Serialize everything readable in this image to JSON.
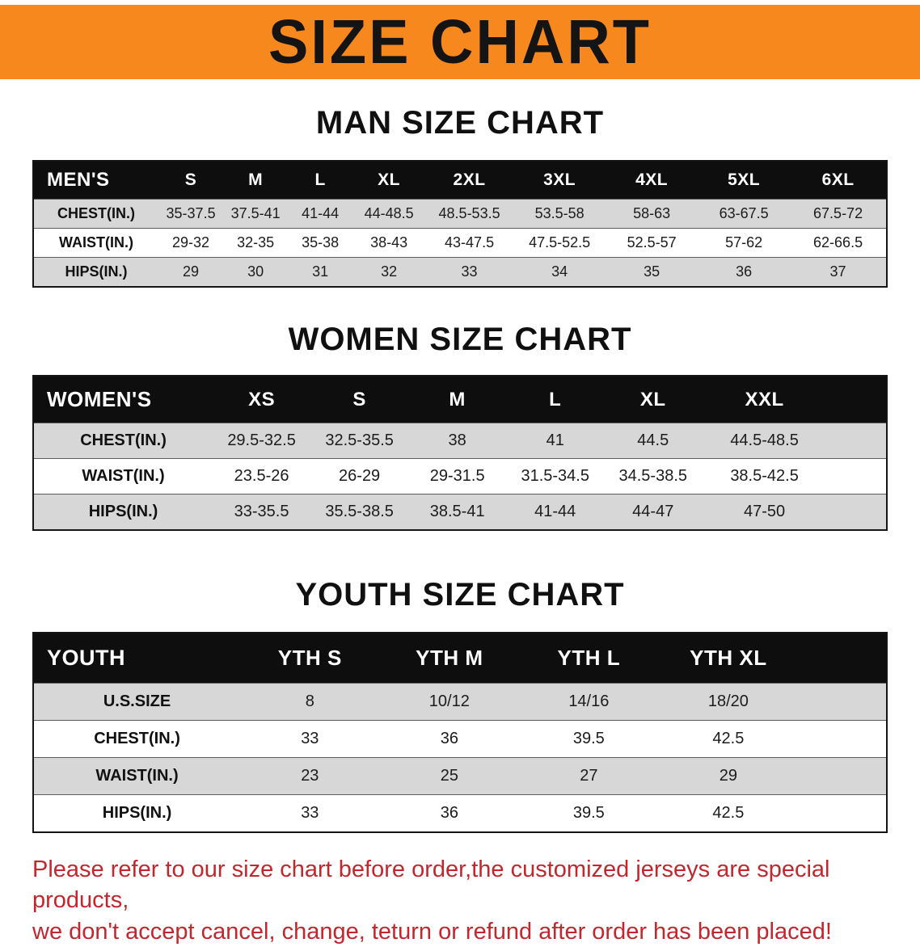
{
  "banner": {
    "title": "SIZE CHART"
  },
  "colors": {
    "banner_bg": "#f6881e",
    "table_header_bg": "#0e0e0e",
    "row_alt_gray": "#d7d7d7",
    "disclaimer_text": "#c1272d"
  },
  "sections": [
    {
      "heading": "MAN SIZE CHART",
      "table": {
        "header": [
          "MEN'S",
          "S",
          "M",
          "L",
          "XL",
          "2XL",
          "3XL",
          "4XL",
          "5XL",
          "6XL"
        ],
        "rows": [
          [
            "CHEST(IN.)",
            "35-37.5",
            "37.5-41",
            "41-44",
            "44-48.5",
            "48.5-53.5",
            "53.5-58",
            "58-63",
            "63-67.5",
            "67.5-72"
          ],
          [
            "WAIST(IN.)",
            "29-32",
            "32-35",
            "35-38",
            "38-43",
            "43-47.5",
            "47.5-52.5",
            "52.5-57",
            "57-62",
            "62-66.5"
          ],
          [
            "HIPS(IN.)",
            "29",
            "30",
            "31",
            "32",
            "33",
            "34",
            "35",
            "36",
            "37"
          ]
        ]
      }
    },
    {
      "heading": "WOMEN SIZE CHART",
      "table": {
        "header": [
          "WOMEN'S",
          "XS",
          "S",
          "M",
          "L",
          "XL",
          "XXL"
        ],
        "rows": [
          [
            "CHEST(IN.)",
            "29.5-32.5",
            "32.5-35.5",
            "38",
            "41",
            "44.5",
            "44.5-48.5"
          ],
          [
            "WAIST(IN.)",
            "23.5-26",
            "26-29",
            "29-31.5",
            "31.5-34.5",
            "34.5-38.5",
            "38.5-42.5"
          ],
          [
            "HIPS(IN.)",
            "33-35.5",
            "35.5-38.5",
            "38.5-41",
            "41-44",
            "44-47",
            "47-50"
          ]
        ]
      }
    },
    {
      "heading": "YOUTH SIZE CHART",
      "table": {
        "header": [
          "YOUTH",
          "YTH S",
          "YTH M",
          "YTH L",
          "YTH XL"
        ],
        "rows": [
          [
            "U.S.SIZE",
            "8",
            "10/12",
            "14/16",
            "18/20"
          ],
          [
            "CHEST(IN.)",
            "33",
            "36",
            "39.5",
            "42.5"
          ],
          [
            "WAIST(IN.)",
            "23",
            "25",
            "27",
            "29"
          ],
          [
            "HIPS(IN.)",
            "33",
            "36",
            "39.5",
            "42.5"
          ]
        ]
      }
    }
  ],
  "disclaimer": {
    "line1": "Please refer to our size chart before order,the customized jerseys are special products,",
    "line2": "we don't accept cancel, change, teturn or refund after order has been placed!"
  }
}
